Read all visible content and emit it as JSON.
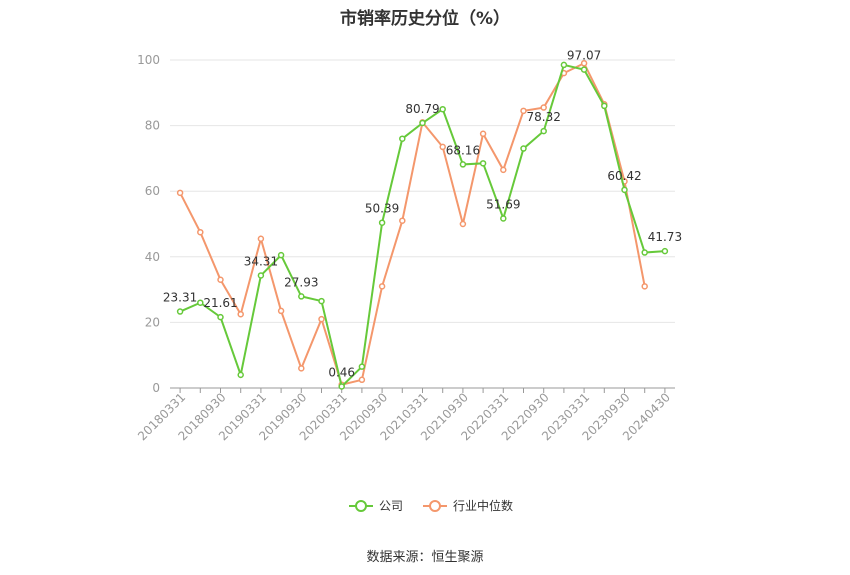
{
  "chart_data": {
    "type": "line",
    "title": "市销率历史分位（%）",
    "source": "数据来源：恒生聚源",
    "ylim": [
      0,
      100
    ],
    "yticks": [
      0,
      20,
      40,
      60,
      80,
      100
    ],
    "grid": true,
    "legend_position": "bottom",
    "x": [
      "20180331",
      "20180630",
      "20180930",
      "20181231",
      "20190331",
      "20190630",
      "20190930",
      "20191231",
      "20200331",
      "20200630",
      "20200930",
      "20201231",
      "20210331",
      "20210630",
      "20210930",
      "20211231",
      "20220331",
      "20220630",
      "20220930",
      "20221231",
      "20230331",
      "20230630",
      "20230930",
      "20231231",
      "20240430"
    ],
    "xtick_labels": [
      "20180331",
      "20180930",
      "20190331",
      "20190930",
      "20200331",
      "20200930",
      "20210331",
      "20210930",
      "20220331",
      "20220930",
      "20230331",
      "20230930",
      "20240430"
    ],
    "series": [
      {
        "name": "公司",
        "color": "#66c93a",
        "values": [
          23.31,
          26,
          21.61,
          4,
          34.31,
          40.5,
          27.93,
          26.5,
          0.46,
          6.5,
          50.39,
          76,
          80.79,
          85,
          68.16,
          68.5,
          51.69,
          73,
          78.32,
          98.5,
          97.07,
          86,
          60.42,
          41.3,
          41.73
        ],
        "labels": {
          "0": "23.31",
          "2": "21.61",
          "4": "34.31",
          "6": "27.93",
          "8": "0.46",
          "10": "50.39",
          "12": "80.79",
          "14": "68.16",
          "16": "51.69",
          "18": "78.32",
          "20": "97.07",
          "22": "60.42",
          "24": "41.73"
        }
      },
      {
        "name": "行业中位数",
        "color": "#f4976c",
        "values": [
          59.5,
          47.5,
          33,
          22.5,
          45.5,
          23.5,
          6,
          21,
          1,
          2.5,
          31,
          51,
          81,
          73.5,
          50,
          77.5,
          66.5,
          84.5,
          85.5,
          96,
          99,
          86.5,
          63,
          31,
          null
        ]
      }
    ]
  }
}
